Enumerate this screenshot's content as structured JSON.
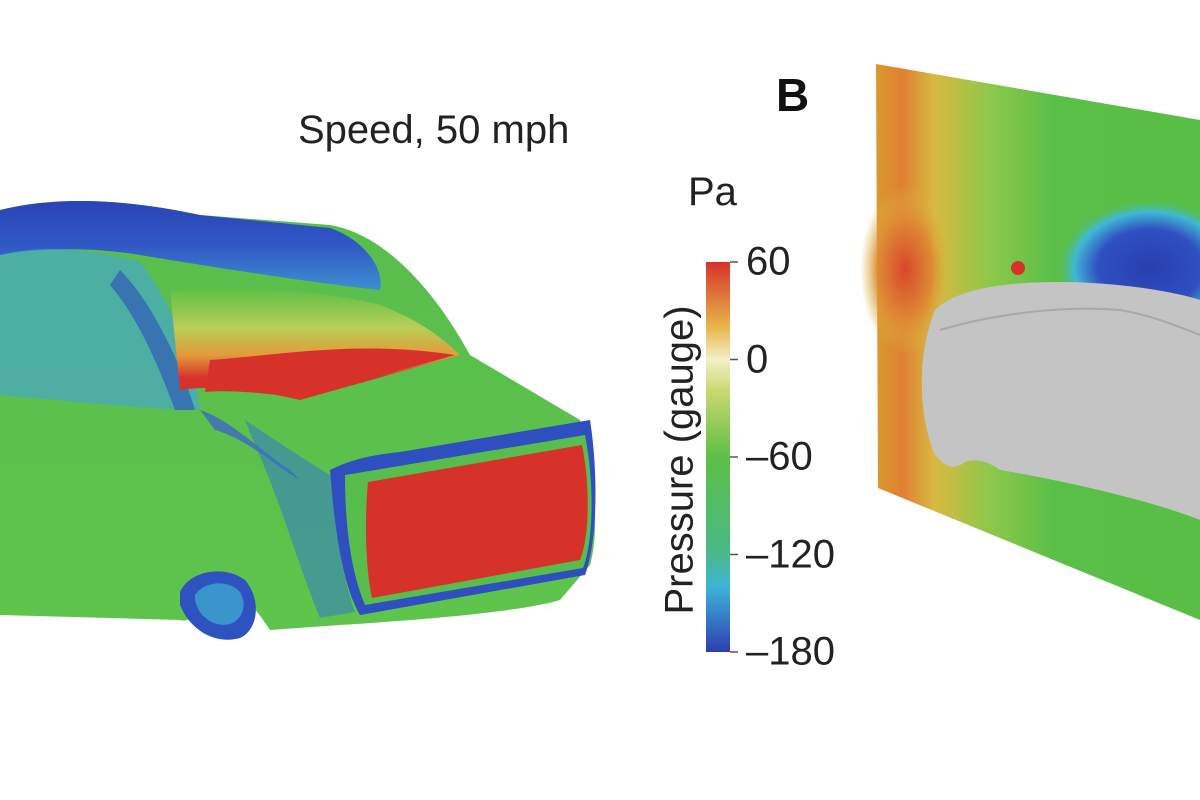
{
  "figure": {
    "speed_label": "Speed, 50 mph",
    "panel_label": "B",
    "colorbar": {
      "title": "Pressure (gauge)",
      "unit": "Pa",
      "ticks": [
        {
          "label": "60",
          "value": 60
        },
        {
          "label": "0",
          "value": 0
        },
        {
          "label": "–60",
          "value": -60
        },
        {
          "label": "–120",
          "value": -120
        },
        {
          "label": "–180",
          "value": -180
        }
      ],
      "range": [
        -180,
        60
      ],
      "gradient": [
        {
          "value": -180,
          "color": "#2b3fb0"
        },
        {
          "value": -140,
          "color": "#3fb3d8"
        },
        {
          "value": -120,
          "color": "#49b989"
        },
        {
          "value": -60,
          "color": "#5cbf46"
        },
        {
          "value": -20,
          "color": "#c9d86f"
        },
        {
          "value": 0,
          "color": "#f3f0c6"
        },
        {
          "value": 20,
          "color": "#e7b64a"
        },
        {
          "value": 60,
          "color": "#d7322a"
        }
      ]
    },
    "colors": {
      "high": "#d7322a",
      "mid": "#5cbf46",
      "low": "#2b3fb0",
      "car_gray": "#c4c4c4"
    }
  }
}
